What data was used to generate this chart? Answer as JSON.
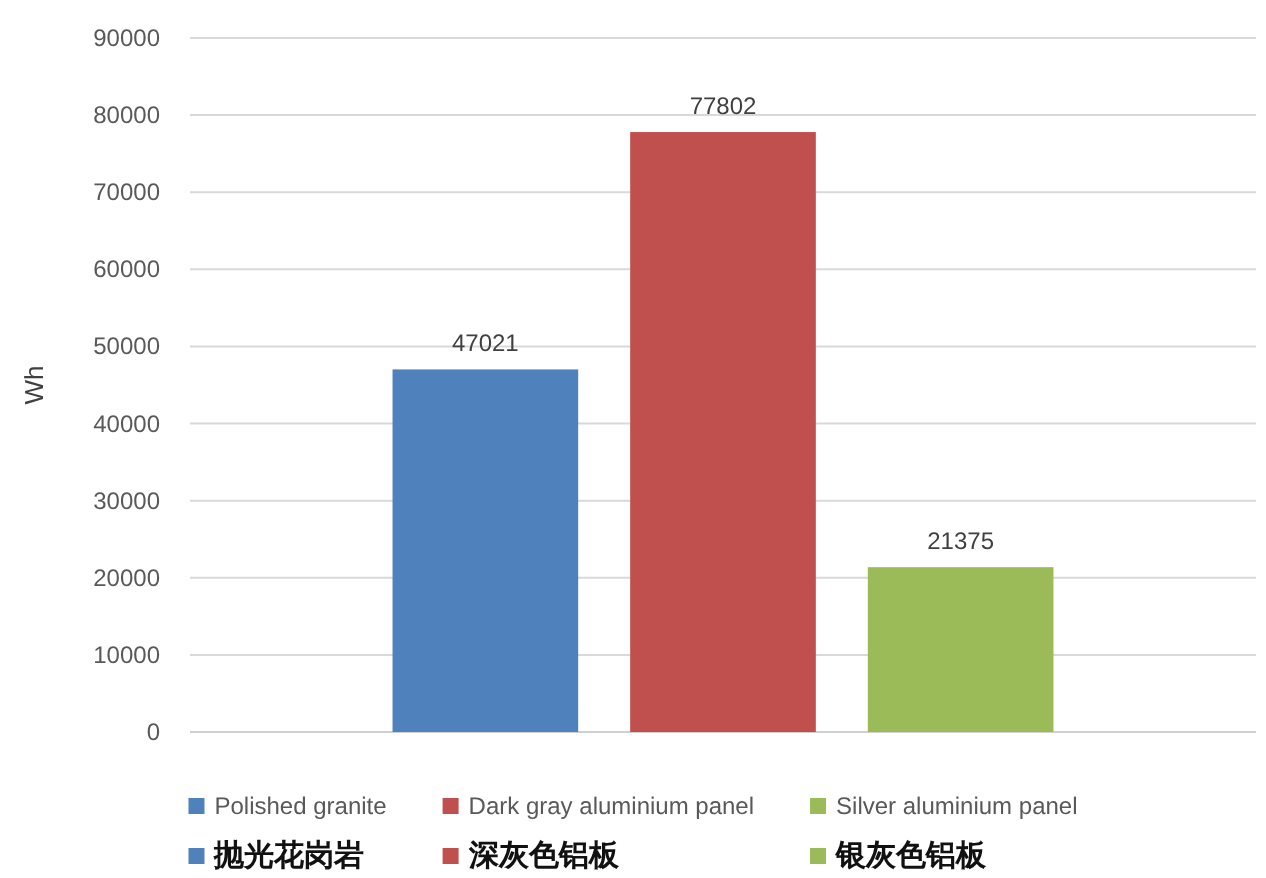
{
  "chart_data": {
    "type": "bar",
    "categories": [
      null
    ],
    "ylabel": "Wh",
    "series": [
      {
        "name": "Polished granite\n抛光花岗岩",
        "color": "#4f81bd",
        "values": [
          47021
        ]
      },
      {
        "name": "Dark gray aluminium panel\n深灰色铝板",
        "color": "#c0504d",
        "values": [
          77802
        ]
      },
      {
        "name": "Silver aluminium panel\n银灰色铝板",
        "color": "#9bbb59",
        "values": [
          21375
        ]
      }
    ],
    "ylim": [
      0,
      90000
    ],
    "yticks": [
      0,
      10000,
      20000,
      30000,
      40000,
      50000,
      60000,
      70000,
      80000,
      90000
    ],
    "grid": "y",
    "legend": "bottom",
    "data_labels": true
  }
}
